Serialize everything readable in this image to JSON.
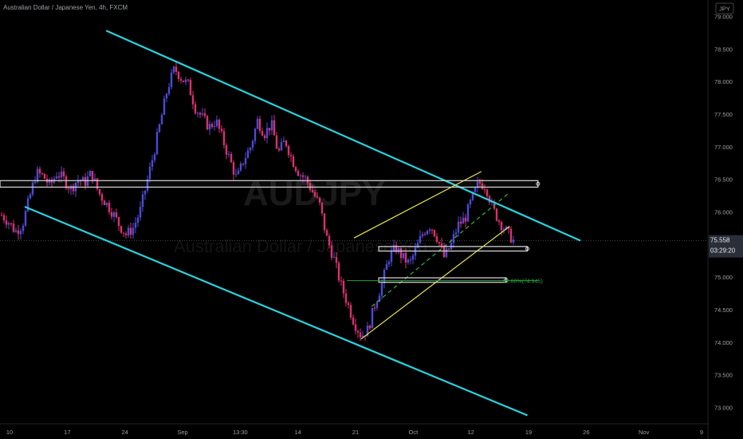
{
  "chart_data": {
    "type": "candlestick",
    "title": "Australian Dollar / Japanese Yen, 4h, FXCM",
    "currency_badge": "JPY",
    "watermark": "AUDJPY",
    "watermark_sub": "Australian Dollar / Japanese Yen",
    "y_ticks": [
      "79.000",
      "78.500",
      "78.000",
      "77.500",
      "77.000",
      "76.500",
      "76.000",
      "75.500",
      "75.000",
      "74.500",
      "74.000",
      "73.500",
      "73.000"
    ],
    "ylim": [
      72.75,
      79.25
    ],
    "x_ticks": [
      "10",
      "17",
      "24",
      "Sep",
      "13:30",
      "14",
      "21",
      "Oct",
      "12",
      "19",
      "26",
      "Nov",
      "9"
    ],
    "last_price": "75.558",
    "countdown": "03:29:20",
    "fib_label": "61.80%(74.945)",
    "price_path": [
      75.95,
      75.85,
      75.7,
      75.8,
      76.2,
      76.6,
      76.55,
      76.4,
      76.6,
      76.5,
      76.35,
      76.5,
      76.45,
      76.6,
      76.3,
      76.15,
      76.0,
      75.8,
      75.65,
      75.75,
      76.0,
      76.45,
      76.9,
      77.4,
      77.9,
      78.2,
      78.05,
      77.95,
      77.6,
      77.45,
      77.3,
      77.4,
      77.1,
      76.8,
      76.5,
      76.8,
      77.0,
      77.4,
      77.2,
      77.35,
      76.9,
      77.1,
      76.8,
      76.6,
      76.5,
      76.3,
      76.1,
      75.6,
      75.3,
      74.9,
      74.6,
      74.3,
      74.1,
      74.2,
      74.6,
      74.9,
      75.3,
      75.45,
      75.3,
      75.2,
      75.45,
      75.7,
      75.8,
      75.6,
      75.3,
      75.5,
      75.8,
      75.9,
      76.2,
      76.45,
      76.4,
      76.05,
      75.85,
      75.7,
      75.56
    ],
    "channel_upper": [
      [
        0.15,
        78.78
      ],
      [
        0.82,
        75.56
      ]
    ],
    "channel_lower": [
      [
        0.035,
        76.08
      ],
      [
        0.745,
        72.88
      ]
    ],
    "wedge_upper": [
      [
        0.5,
        75.6
      ],
      [
        0.68,
        76.62
      ]
    ],
    "wedge_lower": [
      [
        0.51,
        74.05
      ],
      [
        0.72,
        75.78
      ]
    ],
    "dashed_trend": [
      [
        0.525,
        74.55
      ],
      [
        0.72,
        76.3
      ]
    ],
    "resistance_zone": [
      [
        0.0,
        76.48
      ],
      [
        0.76,
        76.38
      ]
    ],
    "support_zone_1": [
      [
        0.535,
        75.47
      ],
      [
        0.745,
        75.4
      ]
    ],
    "support_zone_2": [
      [
        0.535,
        74.99
      ],
      [
        0.715,
        74.92
      ]
    ],
    "fib_level": 74.945,
    "fib_range": [
      0.49,
      0.76
    ]
  },
  "colors": {
    "up": "#4b4bd8",
    "down": "#d8326e",
    "channel": "#27d3e0",
    "wedge": "#e9e64a",
    "dashed": "#2fb34a",
    "fib": "#2f9e3a",
    "zone": "#d8d8d8",
    "price_tag": "#2a2e39"
  }
}
